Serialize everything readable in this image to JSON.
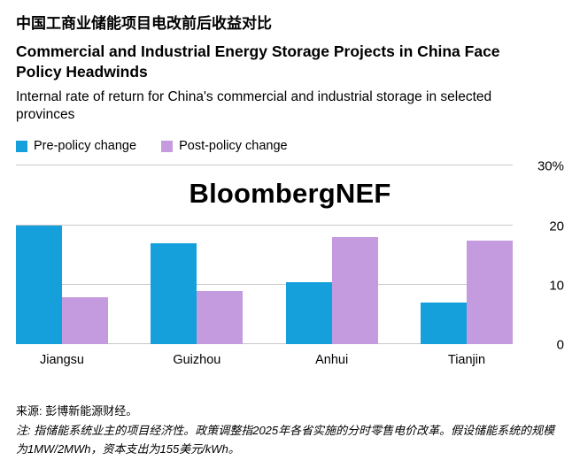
{
  "header": {
    "title_zh": "中国工商业储能项目电改前后收益对比",
    "title_en": "Commercial and Industrial Energy Storage Projects in China Face Policy Headwinds",
    "subtitle": "Internal rate of return for China's commercial and industrial storage in selected provinces"
  },
  "legend": [
    {
      "label": "Pre-policy change",
      "color": "#15a0dc"
    },
    {
      "label": "Post-policy change",
      "color": "#c49bdf"
    }
  ],
  "watermark": "BloombergNEF",
  "chart_data": {
    "type": "bar",
    "title": "中国工商业储能项目电改前后收益对比 / Commercial and Industrial Energy Storage Projects in China Face Policy Headwinds",
    "subtitle": "Internal rate of return for China's commercial and industrial storage in selected provinces",
    "categories": [
      "Jiangsu",
      "Guizhou",
      "Anhui",
      "Tianjin"
    ],
    "series": [
      {
        "name": "Pre-policy change",
        "color": "#15a0dc",
        "values": [
          20,
          17,
          10.5,
          7
        ]
      },
      {
        "name": "Post-policy change",
        "color": "#c49bdf",
        "values": [
          8,
          9,
          18,
          17.5
        ]
      }
    ],
    "xlabel": "",
    "ylabel": "",
    "ylim": [
      0,
      30
    ],
    "yticks": [
      {
        "value": 30,
        "label": "30%"
      },
      {
        "value": 20,
        "label": "20"
      },
      {
        "value": 10,
        "label": "10"
      },
      {
        "value": 0,
        "label": "0"
      }
    ],
    "grid": "horizontal",
    "legend_position": "top-left",
    "gridline_color": "#c9c9c9"
  },
  "footer": {
    "source": "来源: 彭博新能源财经。",
    "note": "注: 指储能系统业主的项目经济性。政策调整指2025年各省实施的分时零售电价改革。假设储能系统的规模为1MW/2MWh，资本支出为155美元/kWh。"
  }
}
